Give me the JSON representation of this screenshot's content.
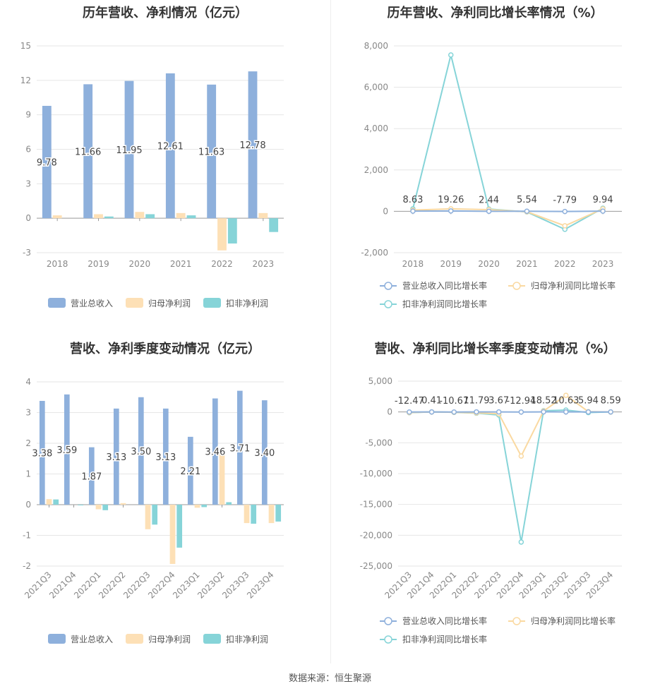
{
  "source_text": "数据来源：恒生聚源",
  "colors": {
    "revenue": "#8eb0dc",
    "net_profit": "#fde0b6",
    "deducted_profit": "#86d4d8",
    "revenue_line": "#8eb0dc",
    "net_line": "#fad9a1",
    "deducted_line": "#86d4d8",
    "grid": "#e6e6e6",
    "axis": "#999999"
  },
  "chart_data": [
    {
      "id": "annual-bar",
      "type": "bar",
      "title": "历年营收、净利情况（亿元）",
      "categories": [
        "2018",
        "2019",
        "2020",
        "2021",
        "2022",
        "2023"
      ],
      "series": [
        {
          "name": "营业总收入",
          "values": [
            9.78,
            11.66,
            11.95,
            12.61,
            11.63,
            12.78
          ],
          "labels": [
            "9.78",
            "11.66",
            "11.95",
            "12.61",
            "11.63",
            "12.78"
          ]
        },
        {
          "name": "归母净利润",
          "values": [
            0.25,
            0.35,
            0.55,
            0.45,
            -2.8,
            0.45
          ]
        },
        {
          "name": "扣非净利润",
          "values": [
            0.0,
            0.15,
            0.35,
            0.25,
            -2.2,
            -1.2
          ]
        }
      ],
      "ylim": [
        -3,
        15
      ],
      "yticks": [
        -3,
        0,
        3,
        6,
        9,
        12,
        15
      ],
      "ytick_labels": [
        "-3",
        "0",
        "3",
        "6",
        "9",
        "12",
        "15"
      ],
      "grid": true,
      "legend": "bottom"
    },
    {
      "id": "annual-growth",
      "type": "line",
      "title": "历年营收、净利同比增长率情况（%）",
      "categories": [
        "2018",
        "2019",
        "2020",
        "2021",
        "2022",
        "2023"
      ],
      "series": [
        {
          "name": "营业总收入同比增长率",
          "values": [
            8.63,
            19.26,
            2.44,
            5.54,
            -7.79,
            9.94
          ],
          "labels": [
            "8.63",
            "19.26",
            "2.44",
            "5.54",
            "-7.79",
            "9.94"
          ]
        },
        {
          "name": "归母净利润同比增长率",
          "values": [
            60,
            120,
            80,
            -20,
            -700,
            120
          ]
        },
        {
          "name": "扣非净利润同比增长率",
          "values": [
            120,
            7560,
            110,
            -30,
            -870,
            150
          ]
        }
      ],
      "ylim": [
        -2000,
        8000
      ],
      "yticks": [
        -2000,
        0,
        2000,
        4000,
        6000,
        8000
      ],
      "ytick_labels": [
        "-2,000",
        "0",
        "2,000",
        "4,000",
        "6,000",
        "8,000"
      ],
      "grid": true,
      "legend": "bottom"
    },
    {
      "id": "quarter-bar",
      "type": "bar",
      "title": "营收、净利季度变动情况（亿元）",
      "categories": [
        "2021Q3",
        "2021Q4",
        "2022Q1",
        "2022Q2",
        "2022Q3",
        "2022Q4",
        "2023Q1",
        "2023Q2",
        "2023Q3",
        "2023Q4"
      ],
      "series": [
        {
          "name": "营业总收入",
          "values": [
            3.38,
            3.59,
            1.87,
            3.13,
            3.5,
            3.13,
            2.21,
            3.46,
            3.71,
            3.4
          ],
          "labels": [
            "3.38",
            "3.59",
            "1.87",
            "3.13",
            "3.50",
            "3.13",
            "2.21",
            "3.46",
            "3.71",
            "3.40"
          ]
        },
        {
          "name": "归母净利润",
          "values": [
            0.18,
            0.0,
            -0.15,
            0.05,
            -0.8,
            -1.93,
            -0.1,
            1.65,
            -0.6,
            -0.6
          ]
        },
        {
          "name": "扣非净利润",
          "values": [
            0.17,
            -0.02,
            -0.18,
            0.0,
            -0.65,
            -1.4,
            -0.08,
            0.08,
            -0.62,
            -0.55
          ]
        }
      ],
      "ylim": [
        -2,
        4
      ],
      "yticks": [
        -2,
        -1,
        0,
        1,
        2,
        3,
        4
      ],
      "ytick_labels": [
        "-2",
        "-1",
        "0",
        "1",
        "2",
        "3",
        "4"
      ],
      "grid": true,
      "legend": "bottom"
    },
    {
      "id": "quarter-growth",
      "type": "line",
      "title": "营收、净利同比增长率季度变动情况（%）",
      "categories": [
        "2021Q3",
        "2021Q4",
        "2022Q1",
        "2022Q2",
        "2022Q3",
        "2022Q4",
        "2023Q1",
        "2023Q2",
        "2023Q3",
        "2023Q4"
      ],
      "series": [
        {
          "name": "营业总收入同比增长率",
          "values": [
            -12.47,
            0.41,
            -10.67,
            11.79,
            3.67,
            -12.94,
            18.52,
            10.63,
            5.94,
            8.59
          ],
          "labels": [
            "-12.47",
            "0.41",
            "-10.67",
            "11.79",
            "3.67",
            "-12.94",
            "18.52",
            "10.63",
            "5.94",
            "8.59"
          ]
        },
        {
          "name": "归母净利润同比增长率",
          "values": [
            -100,
            0,
            -50,
            -150,
            -300,
            -7150,
            150,
            2700,
            50,
            0
          ]
        },
        {
          "name": "扣非净利润同比增长率",
          "values": [
            -120,
            10,
            -60,
            -200,
            -500,
            -21100,
            200,
            300,
            -100,
            0
          ]
        }
      ],
      "ylim": [
        -25000,
        5000
      ],
      "yticks": [
        -25000,
        -20000,
        -15000,
        -10000,
        -5000,
        0,
        5000
      ],
      "ytick_labels": [
        "-25,000",
        "-20,000",
        "-15,000",
        "-10,000",
        "-5,000",
        "0",
        "5,000"
      ],
      "grid": true,
      "legend": "bottom"
    }
  ]
}
